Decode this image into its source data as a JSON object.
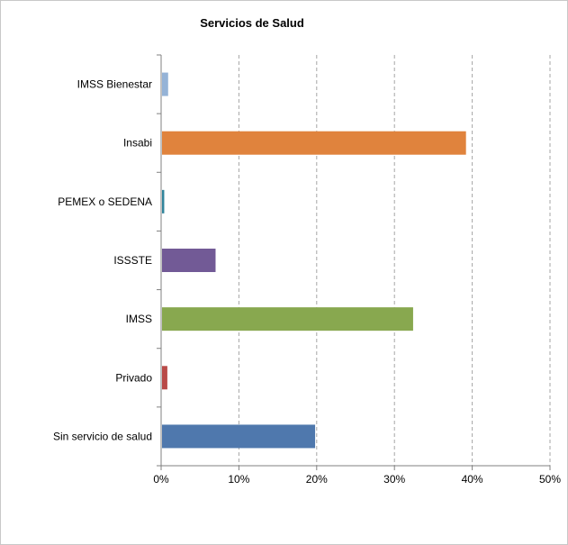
{
  "chart_data": {
    "type": "bar",
    "orientation": "horizontal",
    "title": "Servicios de Salud",
    "xlabel": "",
    "ylabel": "",
    "categories": [
      "IMSS Bienestar",
      "Insabi",
      "PEMEX o SEDENA",
      "ISSSTE",
      "IMSS",
      "Privado",
      "Sin servicio de salud"
    ],
    "values": [
      0.9,
      39.2,
      0.4,
      7.0,
      32.4,
      0.8,
      19.8
    ],
    "colors": [
      "#95b3d7",
      "#e0833d",
      "#31859c",
      "#725a96",
      "#88a84f",
      "#b94a48",
      "#4f78ad"
    ],
    "xlim": [
      0,
      50
    ],
    "xticks": [
      0,
      10,
      20,
      30,
      40,
      50
    ],
    "xtick_labels": [
      "0%",
      "10%",
      "20%",
      "30%",
      "40%",
      "50%"
    ],
    "grid": "vertical-dashed",
    "legend": "none"
  }
}
